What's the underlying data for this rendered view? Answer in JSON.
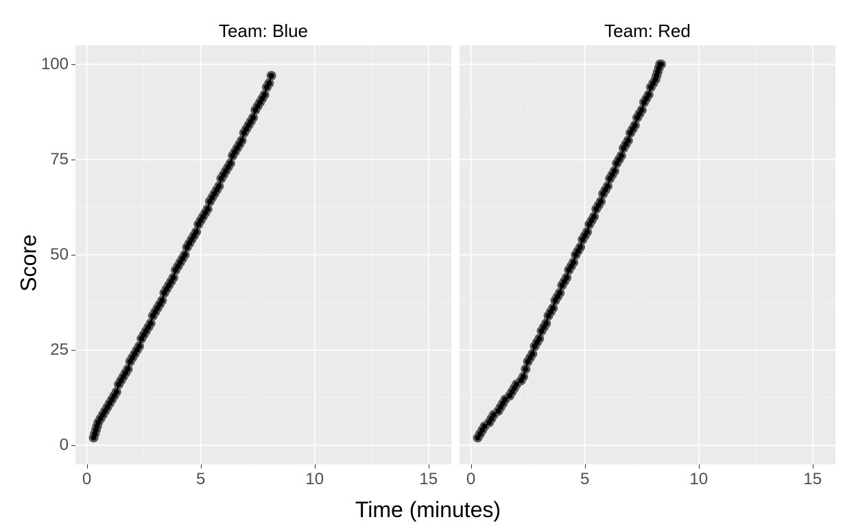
{
  "chart": {
    "type": "scatter-line-facets",
    "x_label": "Time (minutes)",
    "y_label": "Score",
    "xlim": [
      -0.5,
      16
    ],
    "ylim": [
      -5,
      105
    ],
    "x_ticks": [
      0,
      5,
      10,
      15
    ],
    "y_ticks": [
      0,
      25,
      50,
      75,
      100
    ],
    "panel_bg": "#ebebeb",
    "grid_major_color": "#ffffff",
    "grid_minor_color": "#f5f5f5",
    "point_color_outer": "#595959",
    "point_color_inner": "#000000",
    "line_color": "#000000",
    "point_radius_outer": 7,
    "point_radius_inner": 4,
    "line_width": 2.5,
    "title_fontsize": 26,
    "axis_title_fontsize": 32,
    "tick_fontsize": 24,
    "tick_color": "#4d4d4d",
    "panels": [
      {
        "title": "Team: Blue",
        "x": [
          0.3,
          0.35,
          0.4,
          0.45,
          0.5,
          0.6,
          0.7,
          0.8,
          0.9,
          1.0,
          1.1,
          1.2,
          1.3,
          1.4,
          1.5,
          1.6,
          1.7,
          1.8,
          1.9,
          2.0,
          2.1,
          2.2,
          2.3,
          2.4,
          2.5,
          2.6,
          2.7,
          2.8,
          2.9,
          3.0,
          3.1,
          3.2,
          3.3,
          3.4,
          3.5,
          3.6,
          3.7,
          3.8,
          3.9,
          4.0,
          4.1,
          4.2,
          4.3,
          4.4,
          4.5,
          4.6,
          4.7,
          4.8,
          4.9,
          5.0,
          5.1,
          5.2,
          5.3,
          5.4,
          5.5,
          5.6,
          5.7,
          5.8,
          5.9,
          6.0,
          6.1,
          6.2,
          6.3,
          6.4,
          6.5,
          6.6,
          6.7,
          6.8,
          6.9,
          7.0,
          7.1,
          7.2,
          7.3,
          7.4,
          7.5,
          7.6,
          7.7,
          7.8,
          7.9,
          8.0,
          8.1
        ],
        "y": [
          2,
          3,
          4,
          5,
          6,
          7,
          8,
          9,
          10,
          11,
          12,
          13,
          14,
          16,
          17,
          18,
          19,
          20,
          22,
          23,
          24,
          25,
          26,
          28,
          29,
          30,
          31,
          32,
          34,
          35,
          36,
          37,
          38,
          40,
          41,
          42,
          43,
          44,
          46,
          47,
          48,
          49,
          50,
          52,
          53,
          54,
          55,
          56,
          58,
          59,
          60,
          61,
          62,
          64,
          65,
          66,
          67,
          68,
          70,
          71,
          72,
          73,
          74,
          76,
          77,
          78,
          79,
          80,
          82,
          83,
          84,
          85,
          86,
          88,
          89,
          90,
          91,
          92,
          94,
          95,
          97
        ]
      },
      {
        "title": "Team: Red",
        "x": [
          0.3,
          0.4,
          0.5,
          0.6,
          0.8,
          0.9,
          1.0,
          1.2,
          1.3,
          1.4,
          1.5,
          1.7,
          1.8,
          1.9,
          2.0,
          2.2,
          2.3,
          2.4,
          2.5,
          2.6,
          2.7,
          2.8,
          2.9,
          3.0,
          3.1,
          3.2,
          3.3,
          3.4,
          3.5,
          3.6,
          3.7,
          3.8,
          3.9,
          4.0,
          4.1,
          4.2,
          4.3,
          4.4,
          4.5,
          4.6,
          4.7,
          4.8,
          4.9,
          5.0,
          5.1,
          5.2,
          5.3,
          5.4,
          5.5,
          5.6,
          5.7,
          5.8,
          5.9,
          6.0,
          6.1,
          6.2,
          6.3,
          6.4,
          6.5,
          6.6,
          6.7,
          6.8,
          6.9,
          7.0,
          7.1,
          7.2,
          7.3,
          7.4,
          7.5,
          7.6,
          7.7,
          7.8,
          7.9,
          8.0,
          8.1,
          8.15,
          8.2,
          8.25,
          8.3,
          8.35
        ],
        "y": [
          2,
          3,
          4,
          5,
          6,
          7,
          8,
          9,
          10,
          11,
          12,
          13,
          14,
          15,
          16,
          17,
          18,
          20,
          22,
          23,
          24,
          26,
          27,
          28,
          30,
          31,
          32,
          34,
          35,
          36,
          38,
          39,
          40,
          42,
          43,
          44,
          46,
          47,
          48,
          50,
          51,
          52,
          54,
          55,
          56,
          58,
          59,
          60,
          62,
          63,
          64,
          66,
          67,
          68,
          70,
          71,
          72,
          74,
          75,
          76,
          78,
          79,
          80,
          82,
          83,
          84,
          86,
          87,
          88,
          90,
          91,
          92,
          94,
          95,
          96,
          97,
          98,
          99,
          100,
          100
        ]
      }
    ]
  }
}
